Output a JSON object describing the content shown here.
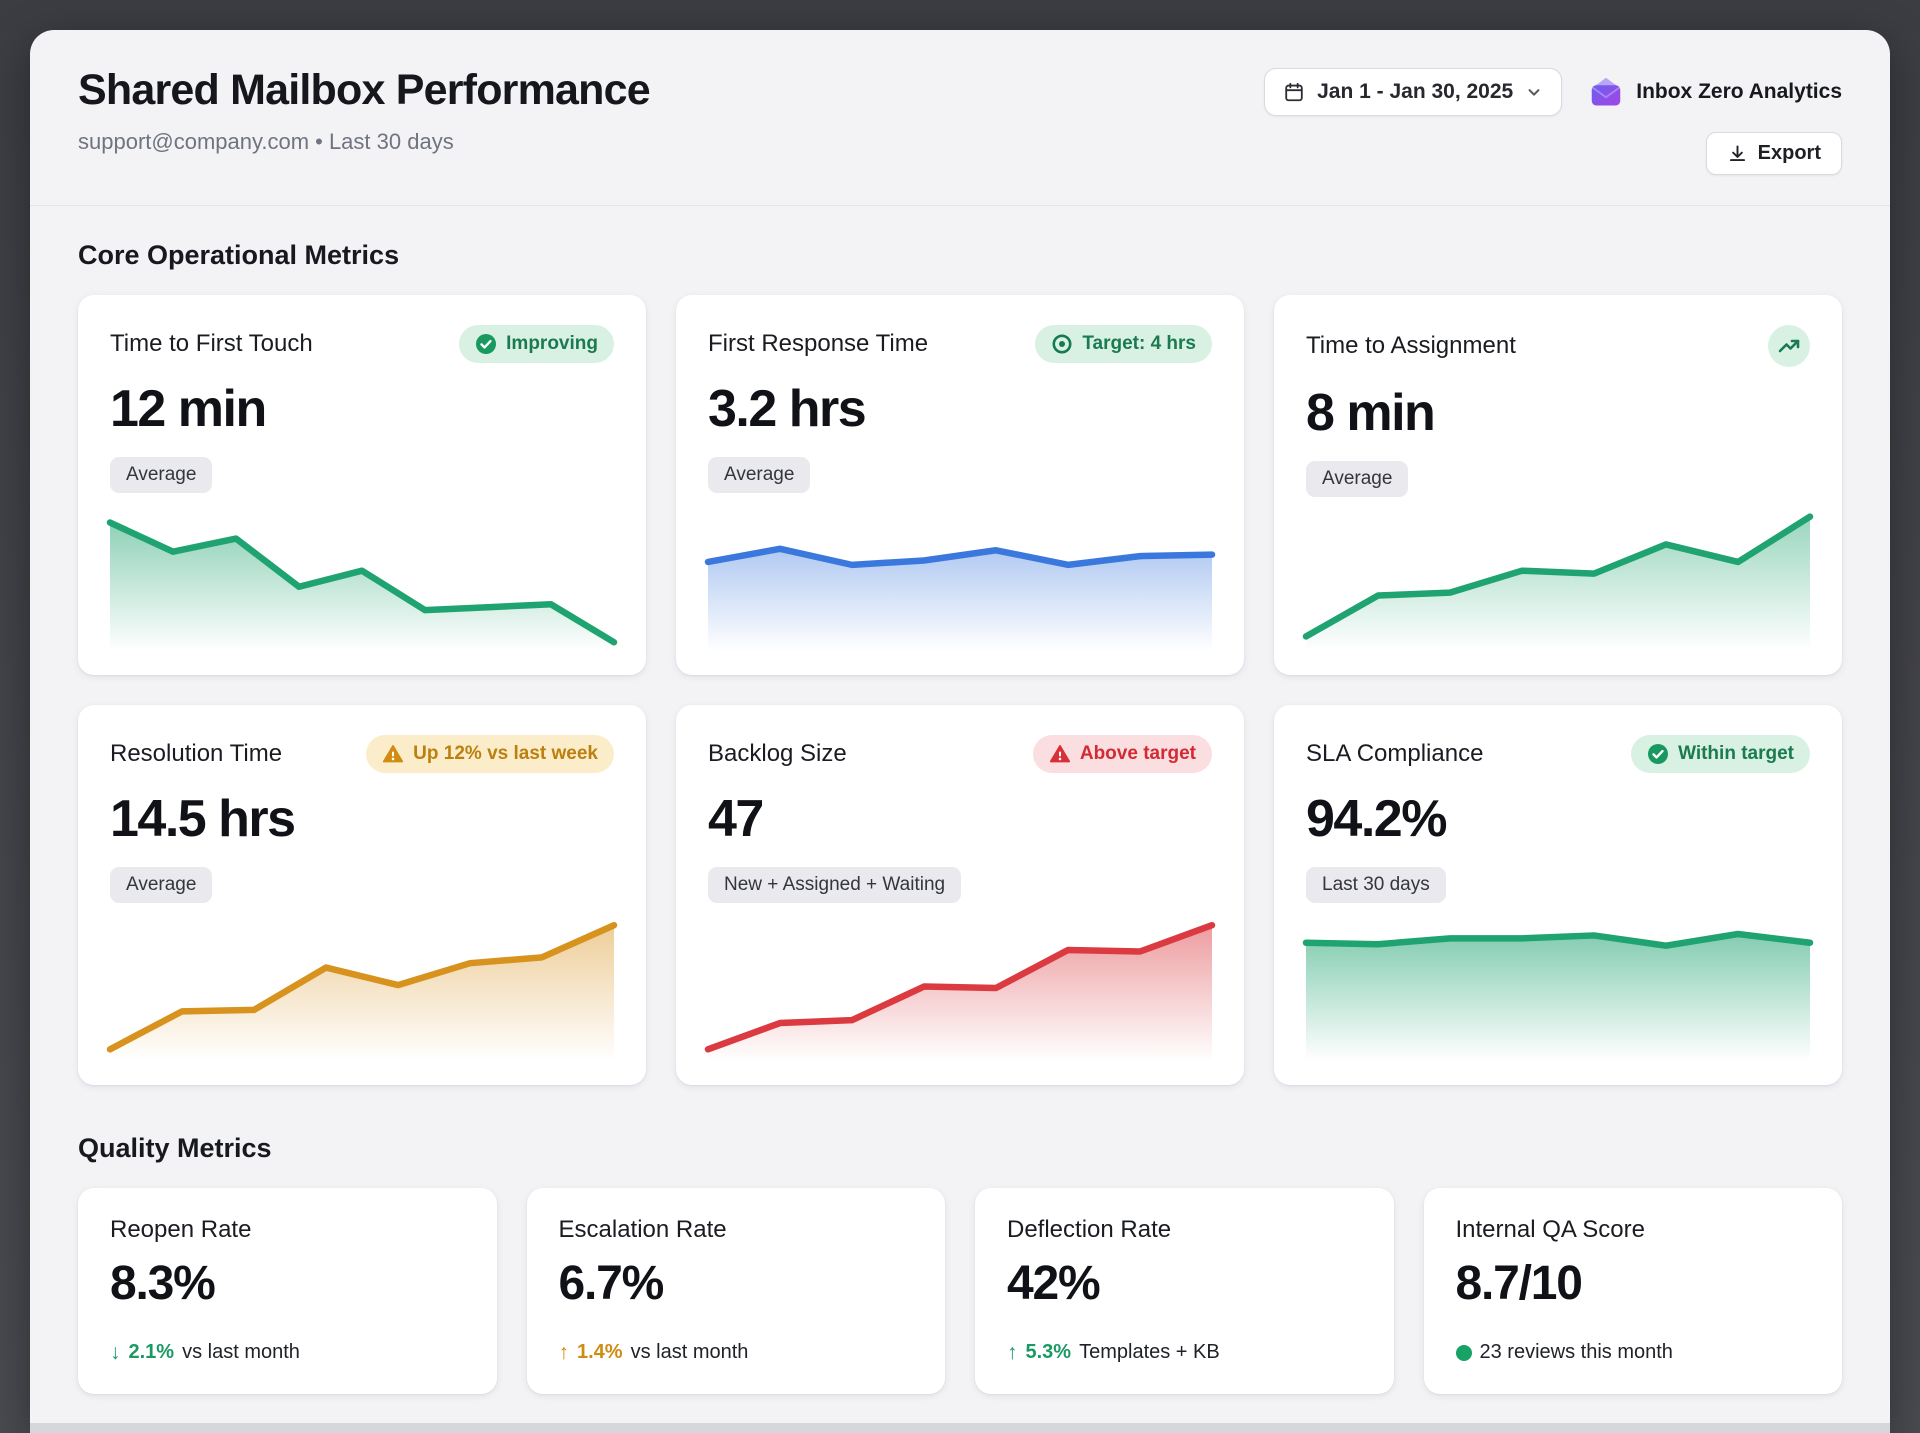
{
  "colors": {
    "green": "#1fa371",
    "blue": "#3b78dd",
    "amber": "#d8921e",
    "red": "#da3a40",
    "badge_green_bg": "#d8f1e3",
    "badge_amber_bg": "#fcedca",
    "badge_red_bg": "#fbdee0",
    "brand_purple": "#8a53ea"
  },
  "header": {
    "title": "Shared Mailbox Performance",
    "subtitle": "support@company.com • Last 30 days",
    "date_range": "Jan 1 - Jan 30, 2025",
    "brand": "Inbox Zero Analytics",
    "export_label": "Export"
  },
  "core_section": {
    "heading": "Core Operational Metrics",
    "cards": [
      {
        "title": "Time to First Touch",
        "badge_label": "Improving",
        "value": "12 min",
        "chip": "Average"
      },
      {
        "title": "First Response Time",
        "badge_label": "Target: 4 hrs",
        "value": "3.2 hrs",
        "chip": "Average"
      },
      {
        "title": "Time to Assignment",
        "value": "8 min",
        "chip": "Average"
      },
      {
        "title": "Resolution Time",
        "badge_label": "Up 12% vs last week",
        "value": "14.5 hrs",
        "chip": "Average"
      },
      {
        "title": "Backlog Size",
        "badge_label": "Above target",
        "value": "47",
        "chip": "New + Assigned + Waiting"
      },
      {
        "title": "SLA Compliance",
        "badge_label": "Within target",
        "value": "94.2%",
        "chip": "Last 30 days"
      }
    ]
  },
  "quality_section": {
    "heading": "Quality Metrics",
    "cards": [
      {
        "title": "Reopen Rate",
        "value": "8.3%",
        "delta_value": "2.1%",
        "delta_text": "vs last month",
        "direction": "down",
        "tone": "positive"
      },
      {
        "title": "Escalation Rate",
        "value": "6.7%",
        "delta_value": "1.4%",
        "delta_text": "vs last month",
        "direction": "up",
        "tone": "warning"
      },
      {
        "title": "Deflection Rate",
        "value": "42%",
        "delta_value": "5.3%",
        "delta_text": "Templates + KB",
        "direction": "up",
        "tone": "positive"
      },
      {
        "title": "Internal QA Score",
        "value": "8.7/10",
        "delta_text": "23 reviews this month",
        "tone": "positive"
      }
    ]
  },
  "chart_data": [
    {
      "type": "area",
      "title": "Time to First Touch trend",
      "x": "last 30 days (unlabeled)",
      "values": [
        88,
        68,
        77,
        44,
        55,
        28,
        30,
        32,
        6
      ],
      "ylim": [
        0,
        100
      ],
      "color": "#1fa371",
      "fill_opacity": 0.5,
      "axes": "hidden",
      "legend": "none",
      "note": "values estimated from unlabeled sparkline, downward trend"
    },
    {
      "type": "area",
      "title": "First Response Time trend",
      "x": "last 30 days (unlabeled)",
      "values": [
        61,
        70,
        59,
        62,
        69,
        59,
        65,
        66
      ],
      "ylim": [
        0,
        100
      ],
      "color": "#3b78dd",
      "fill_opacity": 0.4,
      "axes": "hidden",
      "legend": "none",
      "note": "values estimated from unlabeled sparkline, flat trend"
    },
    {
      "type": "area",
      "title": "Time to Assignment trend",
      "x": "last 30 days (unlabeled)",
      "values": [
        10,
        38,
        40,
        55,
        53,
        73,
        61,
        92
      ],
      "ylim": [
        0,
        100
      ],
      "color": "#1fa371",
      "fill_opacity": 0.45,
      "axes": "hidden",
      "legend": "none",
      "note": "values estimated from unlabeled sparkline, upward trend"
    },
    {
      "type": "area",
      "title": "Resolution Time trend",
      "x": "last 30 days (unlabeled)",
      "values": [
        8,
        34,
        35,
        64,
        52,
        67,
        71,
        93
      ],
      "ylim": [
        0,
        100
      ],
      "color": "#d8921e",
      "fill_opacity": 0.45,
      "axes": "hidden",
      "legend": "none",
      "note": "values estimated from unlabeled sparkline, upward trend"
    },
    {
      "type": "area",
      "title": "Backlog Size trend",
      "x": "last 30 days (unlabeled)",
      "values": [
        8,
        26,
        28,
        51,
        50,
        76,
        75,
        93
      ],
      "ylim": [
        0,
        100
      ],
      "color": "#da3a40",
      "fill_opacity": 0.5,
      "axes": "hidden",
      "legend": "none",
      "note": "values estimated from unlabeled sparkline, upward trend"
    },
    {
      "type": "area",
      "title": "SLA Compliance trend",
      "x": "last 30 days (unlabeled)",
      "values": [
        81,
        80,
        84,
        84,
        86,
        79,
        87,
        81
      ],
      "ylim": [
        0,
        100
      ],
      "color": "#1fa371",
      "fill_opacity": 0.55,
      "axes": "hidden",
      "legend": "none",
      "note": "values estimated from unlabeled sparkline, high flat trend"
    }
  ]
}
